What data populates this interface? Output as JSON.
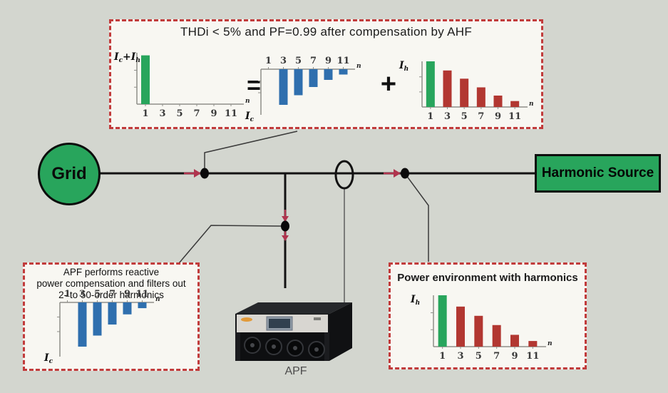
{
  "colors": {
    "bg": "#d3d6cf",
    "box-bg": "#f8f7f2",
    "box-border": "#c13b3b",
    "green": "#28a55c",
    "blue": "#2f6fae",
    "red": "#b23731",
    "line": "#121212",
    "arrow": "#b0344e",
    "connector": "#3a3a3a"
  },
  "labels": {
    "grid": "Grid",
    "harmonic_source": "Harmonic Source",
    "apf": "APF",
    "equals": "=",
    "plus": "+"
  },
  "top_box": {
    "title": "THDi < 5% and PF=0.99 after compensation by AHF"
  },
  "left_box": {
    "lines": [
      "APF performs reactive",
      "power compensation and filters out",
      "2- to 50-order harmonics"
    ]
  },
  "right_box": {
    "title": "Power environment with harmonics"
  },
  "chart_data": [
    {
      "id": "compensated-current",
      "type": "bar",
      "ylabel": "Ic+Ih",
      "xlabel": "n",
      "categories": [
        "1",
        "3",
        "5",
        "7",
        "9",
        "11"
      ],
      "values": [
        0.95,
        0,
        0,
        0,
        0,
        0
      ],
      "bar_colors": [
        "#28a55c",
        null,
        null,
        null,
        null,
        null
      ],
      "direction": "up",
      "ylim": [
        0,
        1
      ],
      "grid": false
    },
    {
      "id": "apf-compensation-current-top",
      "type": "bar",
      "ylabel": "Ic",
      "xlabel": "n",
      "categories": [
        "1",
        "3",
        "5",
        "7",
        "9",
        "11"
      ],
      "values": [
        0,
        -1,
        -0.73,
        -0.5,
        -0.3,
        -0.15
      ],
      "bar_colors": [
        "#2f6fae",
        "#2f6fae",
        "#2f6fae",
        "#2f6fae",
        "#2f6fae",
        "#2f6fae"
      ],
      "direction": "down",
      "ylim": [
        -1,
        0
      ],
      "grid": false
    },
    {
      "id": "harmonic-spectrum-top",
      "type": "bar",
      "ylabel": "Ih",
      "xlabel": "n",
      "categories": [
        "1",
        "3",
        "5",
        "7",
        "9",
        "11"
      ],
      "values": [
        1,
        0.8,
        0.62,
        0.43,
        0.25,
        0.13
      ],
      "bar_colors": [
        "#28a55c",
        "#b23731",
        "#b23731",
        "#b23731",
        "#b23731",
        "#b23731"
      ],
      "direction": "up",
      "ylim": [
        0,
        1
      ],
      "grid": false
    },
    {
      "id": "apf-compensation-current-bottom",
      "type": "bar",
      "ylabel": "Ic",
      "xlabel": "n",
      "categories": [
        "1",
        "3",
        "5",
        "7",
        "9",
        "11"
      ],
      "values": [
        0,
        -1,
        -0.75,
        -0.5,
        -0.27,
        -0.13
      ],
      "bar_colors": [
        "#2f6fae",
        "#2f6fae",
        "#2f6fae",
        "#2f6fae",
        "#2f6fae",
        "#2f6fae"
      ],
      "direction": "down",
      "ylim": [
        -1,
        0
      ],
      "grid": false
    },
    {
      "id": "harmonic-spectrum-bottom",
      "type": "bar",
      "ylabel": "Ih",
      "xlabel": "n",
      "categories": [
        "1",
        "3",
        "5",
        "7",
        "9",
        "11"
      ],
      "values": [
        1,
        0.78,
        0.6,
        0.42,
        0.23,
        0.11
      ],
      "bar_colors": [
        "#28a55c",
        "#b23731",
        "#b23731",
        "#b23731",
        "#b23731",
        "#b23731"
      ],
      "direction": "up",
      "ylim": [
        0,
        1
      ],
      "grid": false
    }
  ]
}
